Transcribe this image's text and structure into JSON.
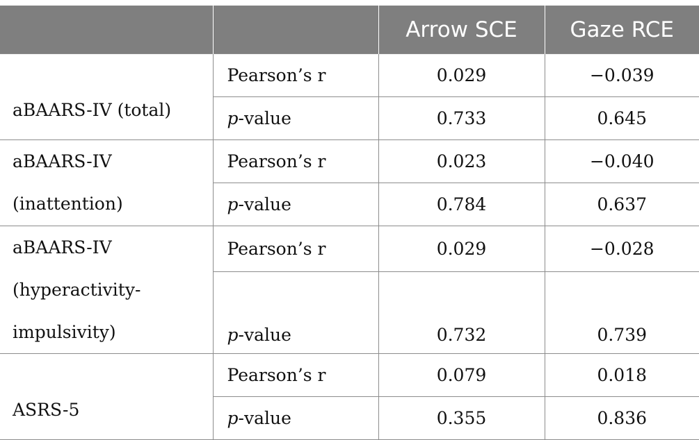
{
  "header": {
    "col1": "",
    "col2": "",
    "col3": "Arrow SCE",
    "col4": "Gaze RCE"
  },
  "rows": [
    {
      "group": "aBAARS-IV (total)",
      "r": {
        "label": "Pearson’s r",
        "arrow": "0.029",
        "gaze": "−0.039"
      },
      "p": {
        "label_italic": "p",
        "label_rest": "-value",
        "arrow": "0.733",
        "gaze": "0.645"
      }
    },
    {
      "group_line1": "aBAARS-IV",
      "group_line2": "(inattention)",
      "r": {
        "label": "Pearson’s r",
        "arrow": "0.023",
        "gaze": "−0.040"
      },
      "p": {
        "label_italic": "p",
        "label_rest": "-value",
        "arrow": "0.784",
        "gaze": "0.637"
      }
    },
    {
      "group_line1": "aBAARS-IV",
      "group_line2": "(hyperactivity-",
      "group_line3": "impulsivity)",
      "r": {
        "label": "Pearson’s r",
        "arrow": "0.029",
        "gaze": "−0.028"
      },
      "p": {
        "label_italic": "p",
        "label_rest": "-value",
        "arrow": "0.732",
        "gaze": "0.739"
      }
    },
    {
      "group": "ASRS-5",
      "r": {
        "label": "Pearson’s r",
        "arrow": "0.079",
        "gaze": "0.018"
      },
      "p": {
        "label_italic": "p",
        "label_rest": "-value",
        "arrow": "0.355",
        "gaze": "0.836"
      }
    }
  ]
}
